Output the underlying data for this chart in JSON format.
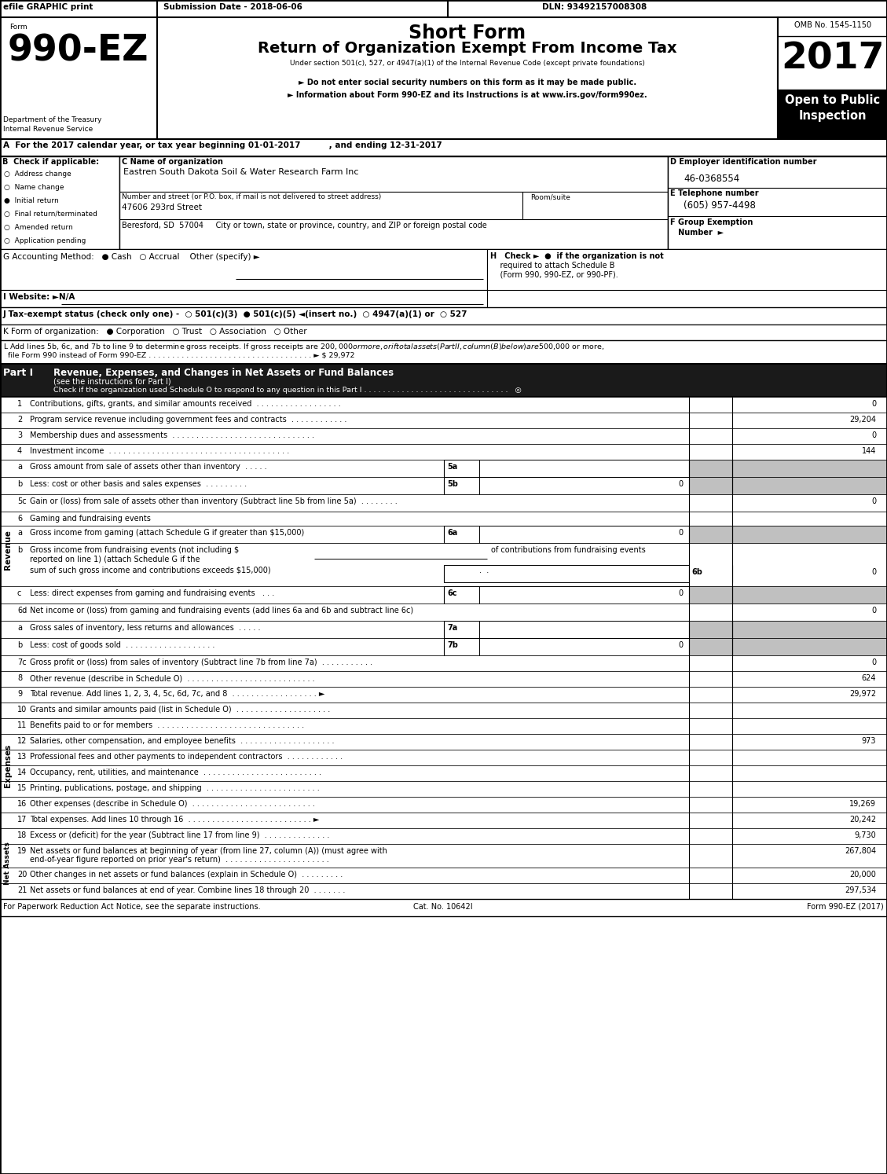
{
  "title_short": "Short Form",
  "title_main": "Return of Organization Exempt From Income Tax",
  "title_sub": "Under section 501(c), 527, or 4947(a)(1) of the Internal Revenue Code (except private foundations)",
  "form_number": "990-EZ",
  "year": "2017",
  "efile_text": "efile GRAPHIC print",
  "submission_date": "Submission Date - 2018-06-06",
  "dln": "DLN: 93492157008308",
  "omb": "OMB No. 1545-1150",
  "dept_line1": "Department of the Treasury",
  "dept_line2": "Internal Revenue Service",
  "bullet1": "► Do not enter social security numbers on this form as it may be made public.",
  "bullet2": "► Information about Form 990-EZ and its Instructions is at www.irs.gov/form990ez.",
  "line_A": "A  For the 2017 calendar year, or tax year beginning 01-01-2017          , and ending 12-31-2017",
  "check_items": [
    "Address change",
    "Name change",
    "Initial return",
    "Final return/terminated",
    "Amended return",
    "Application pending"
  ],
  "checked_items": [
    2
  ],
  "line_C_label": "C Name of organization",
  "line_C_value": "Eastren South Dakota Soil & Water Research Farm Inc",
  "line_D_label": "D Employer identification number",
  "line_D_value": "46-0368554",
  "line_E_label": "E Telephone number",
  "line_E_value": "(605) 957-4498",
  "street_label": "Number and street (or P.O. box, if mail is not delivered to street address)",
  "street_value": "47606 293rd Street",
  "room_label": "Room/suite",
  "city_label": "Beresford, SD  57004     City or town, state or province, country, and ZIP or foreign postal code",
  "line_G": "G Accounting Method:   ● Cash   ○ Accrual    Other (specify) ►",
  "line_H1": "H   Check ►  ●  if the organization is not",
  "line_H2": "    required to attach Schedule B",
  "line_H3": "    (Form 990, 990-EZ, or 990-PF).",
  "line_I": "I Website: ►N/A",
  "line_J": "J Tax-exempt status (check only one) -  ○ 501(c)(3)  ● 501(c)(5) ◄(insert no.)  ○ 4947(a)(1) or  ○ 527",
  "line_K": "K Form of organization:   ● Corporation   ○ Trust   ○ Association   ○ Other",
  "line_L1": "L Add lines 5b, 6c, and 7b to line 9 to determine gross receipts. If gross receipts are $200,000 or more, or if total assets (Part II, column (B) below) are $500,000 or more,",
  "line_L2": "  file Form 990 instead of Form 990-EZ . . . . . . . . . . . . . . . . . . . . . . . . . . . . . . . . . . . ► $ 29,972",
  "part_I_title": "Part I",
  "part_I_heading": "Revenue, Expenses, and Changes in Net Assets or Fund Balances",
  "part_I_heading2": "(see the instructions for Part I)",
  "part_I_check": "Check if the organization used Schedule O to respond to any question in this Part I . . . . . . . . . . . . . . . . . . . . . . . . . . . . . . .   ◎",
  "footer_left": "For Paperwork Reduction Act Notice, see the separate instructions.",
  "footer_cat": "Cat. No. 10642I",
  "footer_right": "Form 990-EZ (2017)"
}
